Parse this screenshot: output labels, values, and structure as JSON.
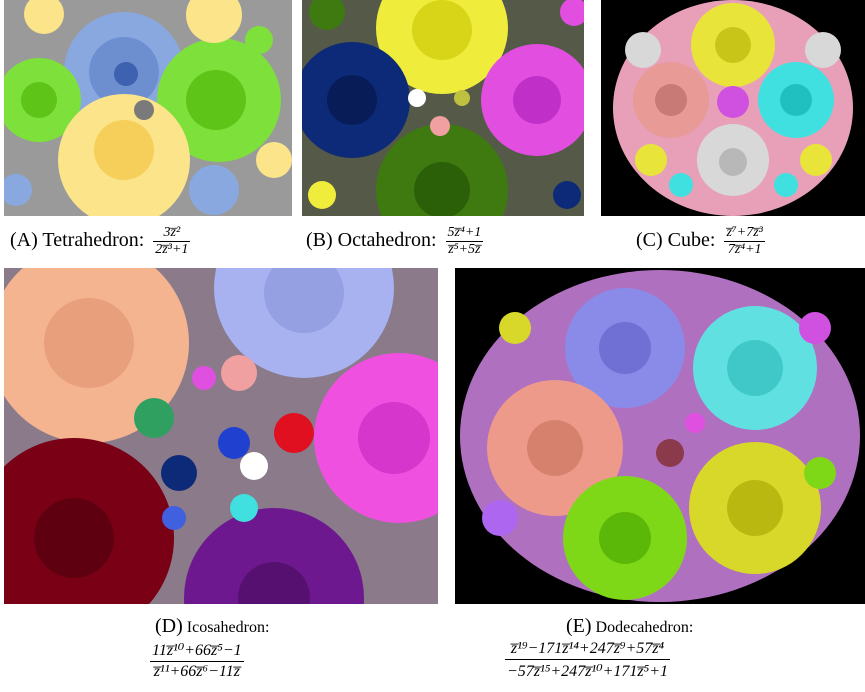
{
  "captions": {
    "a": {
      "label": "(A)",
      "name": "Tetrahedron:",
      "num": "3z̅²",
      "den": "2z̅³+1"
    },
    "b": {
      "label": "(B)",
      "name": "Octahedron:",
      "num": "5z̅⁴+1",
      "den": "z̅⁵+5z̅"
    },
    "c": {
      "label": "(C)",
      "name": "Cube:",
      "num": "z̅⁷+7z̅³",
      "den": "7z̅⁴+1"
    },
    "d": {
      "label": "(D)",
      "name": "Icosahedron:",
      "num": "11z̅¹⁰+66z̅⁵−1",
      "den": "z̅¹¹+66z̅⁶−11z̅"
    },
    "e": {
      "label": "(E)",
      "name": "Dodecahedron:",
      "num": "z̅¹⁹−171z̅¹⁴+247z̅⁹+57z̅⁴",
      "den": "−57z̅¹⁵+247z̅¹⁰+171z̅⁵+1"
    }
  },
  "colors": {
    "background_black": "#000000",
    "tetra": [
      "#8aa8e0",
      "#7ee03a",
      "#fbe48a",
      "#7a7a7a"
    ],
    "octa": [
      "#f0ec3c",
      "#0d2a78",
      "#e24ee0",
      "#3e7a10"
    ],
    "cube": [
      "#e8e43a",
      "#e89a96",
      "#40e0e0",
      "#d8d8d8",
      "#d050e0"
    ],
    "icosa": [
      "#f5b490",
      "#a8b2f0",
      "#7a0016",
      "#f050e0",
      "#6e1890"
    ],
    "dodeca": [
      "#8a8ae8",
      "#60e0e0",
      "#ee9a8a",
      "#7ed818",
      "#d8d82a"
    ]
  }
}
